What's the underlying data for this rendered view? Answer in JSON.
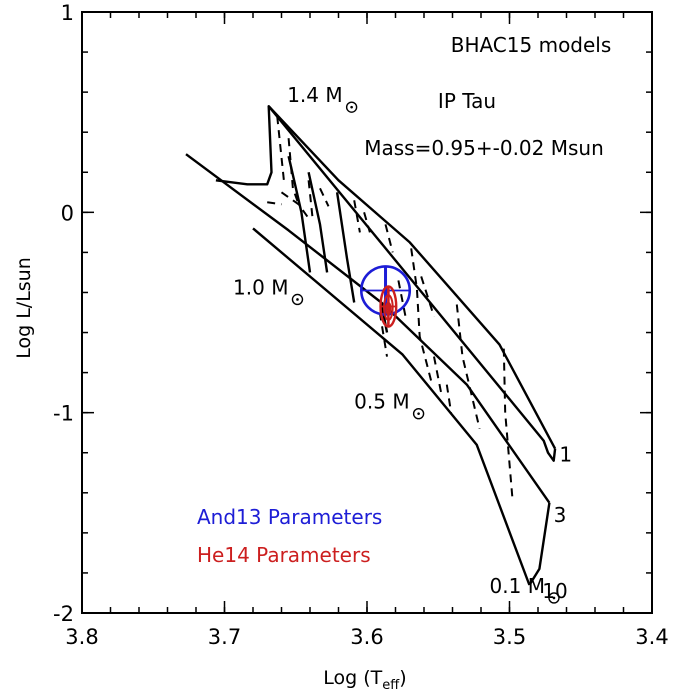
{
  "chart_data": {
    "type": "scatter",
    "title": "BHAC15 models",
    "subtitle": "IP Tau",
    "result_text": "Mass=0.95+-0.02 Msun",
    "xlabel": "Log (T",
    "xlabel_sub": "eff",
    "xlabel_close": ")",
    "ylabel": "Log L/Lsun",
    "xlim": [
      3.8,
      3.4
    ],
    "ylim": [
      -2,
      1
    ],
    "xticks": [
      {
        "value": 3.8,
        "label": "3.8"
      },
      {
        "value": 3.7,
        "label": "3.7"
      },
      {
        "value": 3.6,
        "label": "3.6"
      },
      {
        "value": 3.5,
        "label": "3.5"
      },
      {
        "value": 3.4,
        "label": "3.4"
      }
    ],
    "yticks": [
      {
        "value": 1,
        "label": "1"
      },
      {
        "value": 0,
        "label": "0"
      },
      {
        "value": -1,
        "label": "-1"
      },
      {
        "value": -2,
        "label": "-2"
      }
    ],
    "mass_labels": [
      {
        "text": "1.4 M",
        "x": 3.656,
        "y": 0.55
      },
      {
        "text": "1.0 M",
        "x": 3.694,
        "y": -0.41
      },
      {
        "text": "0.5 M",
        "x": 3.609,
        "y": -0.98
      },
      {
        "text": "0.1 M",
        "x": 3.514,
        "y": -1.9
      }
    ],
    "age_labels": [
      {
        "text": "1",
        "x": 3.465,
        "y": -1.21
      },
      {
        "text": "3",
        "x": 3.469,
        "y": -1.51
      },
      {
        "text": "10",
        "x": 3.477,
        "y": -1.89
      }
    ],
    "isochrones": [
      {
        "age": "1",
        "points": [
          [
            3.669,
            0.53
          ],
          [
            3.62,
            0.16
          ],
          [
            3.57,
            -0.15
          ],
          [
            3.507,
            -0.66
          ],
          [
            3.468,
            -1.18
          ]
        ]
      },
      {
        "age": "3",
        "points": [
          [
            3.727,
            0.29
          ],
          [
            3.655,
            -0.09
          ],
          [
            3.59,
            -0.45
          ],
          [
            3.53,
            -0.86
          ],
          [
            3.472,
            -1.45
          ]
        ]
      },
      {
        "age": "10",
        "points": [
          [
            3.68,
            -0.08
          ],
          [
            3.575,
            -0.71
          ],
          [
            3.523,
            -1.16
          ],
          [
            3.486,
            -1.86
          ]
        ]
      }
    ],
    "mass_tracks": [
      {
        "style": "solid",
        "points": [
          [
            3.706,
            0.16
          ],
          [
            3.684,
            0.14
          ],
          [
            3.67,
            0.14
          ],
          [
            3.667,
            0.2
          ],
          [
            3.669,
            0.53
          ],
          [
            3.476,
            -1.14
          ],
          [
            3.473,
            -1.2
          ],
          [
            3.469,
            -1.24
          ],
          [
            3.468,
            -1.18
          ]
        ]
      },
      {
        "style": "solid",
        "points": [
          [
            3.655,
            0.28
          ],
          [
            3.646,
            0.0
          ],
          [
            3.64,
            -0.3
          ]
        ]
      },
      {
        "style": "solid",
        "points": [
          [
            3.641,
            0.2
          ],
          [
            3.633,
            -0.06
          ],
          [
            3.628,
            -0.3
          ]
        ]
      },
      {
        "style": "solid",
        "points": [
          [
            3.621,
            0.1
          ],
          [
            3.614,
            -0.23
          ],
          [
            3.609,
            -0.45
          ]
        ]
      },
      {
        "style": "solid",
        "points": [
          [
            3.59,
            -0.45
          ],
          [
            3.586,
            -0.6
          ]
        ]
      },
      {
        "style": "solid",
        "points": [
          [
            3.486,
            -1.86
          ],
          [
            3.479,
            -1.78
          ],
          [
            3.472,
            -1.45
          ]
        ]
      },
      {
        "style": "dash",
        "points": [
          [
            3.663,
            0.48
          ],
          [
            3.658,
            0.14
          ]
        ]
      },
      {
        "style": "dash",
        "points": [
          [
            3.66,
            0.1
          ],
          [
            3.648,
            0.04
          ],
          [
            3.64,
            -0.04
          ]
        ]
      },
      {
        "style": "dash",
        "points": [
          [
            3.67,
            0.05
          ],
          [
            3.66,
            0.04
          ]
        ]
      },
      {
        "style": "dash",
        "points": [
          [
            3.655,
            0.37
          ],
          [
            3.652,
            0.12
          ],
          [
            3.648,
            0.04
          ]
        ]
      },
      {
        "style": "dash",
        "points": [
          [
            3.641,
            0.16
          ],
          [
            3.638,
            -0.04
          ]
        ]
      },
      {
        "style": "dash",
        "points": [
          [
            3.633,
            0.12
          ],
          [
            3.627,
            0.03
          ]
        ]
      },
      {
        "style": "dash",
        "points": [
          [
            3.609,
            0.06
          ],
          [
            3.605,
            -0.1
          ]
        ]
      },
      {
        "style": "dash",
        "points": [
          [
            3.602,
            0.0
          ],
          [
            3.598,
            -0.1
          ]
        ]
      },
      {
        "style": "dash",
        "points": [
          [
            3.587,
            -0.06
          ],
          [
            3.582,
            -0.2
          ]
        ]
      },
      {
        "style": "dash",
        "points": [
          [
            3.569,
            -0.18
          ],
          [
            3.565,
            -0.38
          ],
          [
            3.563,
            -0.62
          ],
          [
            3.555,
            -0.84
          ]
        ]
      },
      {
        "style": "dash",
        "points": [
          [
            3.562,
            -0.32
          ],
          [
            3.553,
            -0.52
          ]
        ]
      },
      {
        "style": "dash",
        "points": [
          [
            3.578,
            -0.34
          ],
          [
            3.573,
            -0.52
          ]
        ]
      },
      {
        "style": "dash",
        "points": [
          [
            3.537,
            -0.46
          ],
          [
            3.533,
            -0.72
          ],
          [
            3.521,
            -1.08
          ]
        ]
      },
      {
        "style": "dash",
        "points": [
          [
            3.553,
            -0.72
          ],
          [
            3.548,
            -0.9
          ]
        ]
      },
      {
        "style": "dash",
        "points": [
          [
            3.504,
            -0.68
          ],
          [
            3.503,
            -1.0
          ],
          [
            3.498,
            -1.42
          ]
        ]
      },
      {
        "style": "dash",
        "points": [
          [
            3.544,
            -0.86
          ],
          [
            3.541,
            -1.0
          ]
        ]
      },
      {
        "style": "dash",
        "points": [
          [
            3.591,
            -0.5
          ],
          [
            3.586,
            -0.72
          ]
        ]
      }
    ],
    "series": [
      {
        "name": "And13 Parameters",
        "color": "#1d1dd6",
        "point": {
          "x": 3.587,
          "y": -0.39
        },
        "ellipse": {
          "dx": 0.017,
          "dy": 0.12
        },
        "err_x": 0.017,
        "err_y": 0.12
      },
      {
        "name": "He14 Parameters",
        "color": "#cc1f1f",
        "point": {
          "x": 3.585,
          "y": -0.47
        },
        "ellipse": {
          "dx": 0.0055,
          "dy": 0.1
        },
        "err_x": 0.0055,
        "err_y": 0.1
      }
    ],
    "legend_placement": "lower-left",
    "grid": false
  }
}
